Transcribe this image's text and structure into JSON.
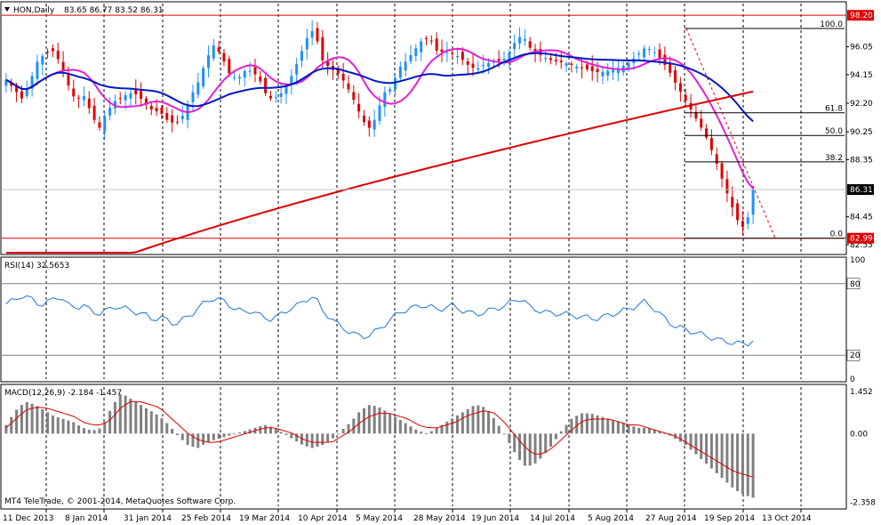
{
  "main_header": {
    "symbol_tf": "HON,Daily",
    "ohlc": "83.65 86.77 83.52 86.31"
  },
  "rsi_header": {
    "label": "RSI(14) 32.5653"
  },
  "macd_header": {
    "label": "MACD(12,26,9) -2.184 -1.457"
  },
  "copyright": "MT4 TeleTrade, © 2001-2014, MetaQuotes Software Corp.",
  "price_axis": {
    "ticks": [
      "96.05",
      "94.15",
      "92.20",
      "90.25",
      "88.35",
      "84.45",
      "82.55"
    ],
    "tick_values": [
      96.05,
      94.15,
      92.2,
      90.25,
      88.35,
      84.45,
      82.55
    ],
    "range": [
      82.0,
      99.0
    ],
    "high_tag": "98.20",
    "high_value": 98.2,
    "current_tag": "86.31",
    "current_value": 86.31,
    "low_tag": "82.99",
    "low_value": 82.99
  },
  "rsi_axis": {
    "ticks": [
      "100",
      "80",
      "20",
      "0"
    ],
    "tick_values": [
      100,
      80,
      20,
      0
    ]
  },
  "macd_axis": {
    "ticks": [
      "1.452",
      "0.00",
      "-2.358"
    ],
    "tick_values": [
      1.452,
      0,
      -2.358
    ]
  },
  "fibonacci": {
    "levels": [
      {
        "label": "100.0",
        "value": 97.3
      },
      {
        "label": "61.8",
        "value": 91.55
      },
      {
        "label": "50.0",
        "value": 90.0
      },
      {
        "label": "38.2",
        "value": 88.2
      },
      {
        "label": "0.0",
        "value": 82.99
      }
    ]
  },
  "date_axis": {
    "labels": [
      "11 Dec 2013",
      "8 Jan 2014",
      "31 Jan 2014",
      "25 Feb 2014",
      "19 Mar 2014",
      "10 Apr 2014",
      "5 May 2014",
      "28 May 2014",
      "19 Jun 2014",
      "14 Jul 2014",
      "5 Aug 2014",
      "27 Aug 2014",
      "19 Sep 2014",
      "13 Oct 2014"
    ]
  },
  "colors": {
    "bull_candle": "#1e90ff",
    "bear_candle": "#dd0000",
    "ma_fast": "#e020d0",
    "ma_mid": "#0018c0",
    "ma_slow": "#dd0000",
    "rsi_line": "#1e78d0",
    "macd_hist": "#808080",
    "macd_signal": "#dd0000",
    "tag_bg": "#dd0000",
    "tag_current_bg": "#000000"
  },
  "chart_data": {
    "type": "candlestick",
    "title": "HON,Daily",
    "price_series": [
      93.8,
      93.2,
      92.5,
      93.5,
      95.0,
      95.6,
      95.8,
      95.0,
      93.5,
      92.4,
      92.8,
      91.6,
      90.4,
      91.5,
      92.3,
      92.6,
      92.9,
      92.8,
      92.2,
      91.7,
      91.6,
      91.0,
      90.8,
      91.4,
      92.7,
      93.7,
      95.2,
      96.2,
      95.4,
      94.2,
      93.8,
      94.4,
      94.4,
      93.7,
      92.5,
      92.6,
      93.0,
      94.0,
      95.2,
      96.6,
      97.3,
      95.2,
      94.6,
      94.3,
      93.6,
      92.6,
      91.4,
      90.4,
      91.2,
      92.9,
      93.2,
      94.6,
      95.1,
      95.8,
      96.5,
      96.7,
      95.7,
      95.7,
      95.6,
      95.3,
      94.8,
      94.5,
      94.8,
      95.0,
      95.1,
      95.3,
      96.3,
      96.9,
      96.0,
      95.6,
      95.3,
      95.1,
      95.0,
      94.9,
      94.7,
      94.6,
      94.4,
      94.3,
      94.4,
      94.5,
      94.7,
      95.0,
      95.5,
      96.0,
      95.8,
      95.2,
      94.5,
      93.5,
      92.6,
      91.7,
      90.8,
      89.8,
      88.5,
      87.0,
      85.5,
      84.2,
      83.5,
      86.31
    ],
    "rsi_series": [
      63,
      66,
      70,
      68,
      64,
      62,
      67,
      70,
      62,
      60,
      62,
      57,
      55,
      57,
      61,
      60,
      58,
      56,
      54,
      50,
      52,
      49,
      46,
      50,
      54,
      60,
      65,
      68,
      66,
      62,
      58,
      56,
      58,
      53,
      50,
      52,
      55,
      60,
      62,
      67,
      70,
      58,
      52,
      46,
      42,
      38,
      36,
      36,
      40,
      45,
      50,
      56,
      58,
      60,
      62,
      61,
      58,
      60,
      62,
      58,
      56,
      54,
      56,
      58,
      60,
      62,
      66,
      68,
      60,
      58,
      56,
      55,
      55,
      54,
      53,
      52,
      51,
      51,
      53,
      55,
      57,
      59,
      62,
      65,
      60,
      54,
      48,
      44,
      42,
      40,
      38,
      36,
      34,
      32,
      31,
      30,
      29,
      32.6
    ],
    "macd_hist": [
      0.3,
      0.8,
      1.1,
      1.0,
      0.8,
      0.6,
      0.5,
      0.4,
      0.2,
      0.1,
      0.2,
      0.9,
      1.4,
      1.2,
      1.0,
      0.8,
      0.6,
      0.3,
      -0.1,
      -0.4,
      -0.5,
      -0.3,
      -0.2,
      -0.1,
      0.0,
      0.1,
      0.2,
      0.3,
      0.2,
      0.0,
      -0.2,
      -0.4,
      -0.5,
      -0.4,
      -0.2,
      0.1,
      0.4,
      0.8,
      1.0,
      0.9,
      0.7,
      0.5,
      0.3,
      0.1,
      0.0,
      0.2,
      0.4,
      0.6,
      0.8,
      1.0,
      0.9,
      0.5,
      0.0,
      -0.6,
      -1.1,
      -1.1,
      -0.8,
      -0.4,
      0.1,
      0.5,
      0.7,
      0.7,
      0.6,
      0.5,
      0.4,
      0.3,
      0.2,
      0.2,
      0.1,
      0.0,
      -0.2,
      -0.4,
      -0.7,
      -1.0,
      -1.3,
      -1.6,
      -1.9,
      -2.1,
      -2.2
    ],
    "macd_signal": [
      0.2,
      0.5,
      0.8,
      0.9,
      0.9,
      0.8,
      0.7,
      0.6,
      0.4,
      0.3,
      0.3,
      0.5,
      0.9,
      1.1,
      1.1,
      1.0,
      0.9,
      0.6,
      0.3,
      0.0,
      -0.2,
      -0.3,
      -0.3,
      -0.2,
      -0.1,
      0.0,
      0.1,
      0.2,
      0.2,
      0.1,
      0.0,
      -0.2,
      -0.3,
      -0.3,
      -0.3,
      -0.1,
      0.1,
      0.4,
      0.6,
      0.7,
      0.7,
      0.6,
      0.5,
      0.3,
      0.2,
      0.2,
      0.3,
      0.4,
      0.6,
      0.7,
      0.8,
      0.7,
      0.4,
      0.0,
      -0.4,
      -0.7,
      -0.7,
      -0.5,
      -0.2,
      0.1,
      0.4,
      0.5,
      0.5,
      0.5,
      0.4,
      0.3,
      0.3,
      0.2,
      0.1,
      0.0,
      -0.1,
      -0.3,
      -0.5,
      -0.7,
      -0.9,
      -1.1,
      -1.3,
      -1.4,
      -1.5
    ]
  }
}
